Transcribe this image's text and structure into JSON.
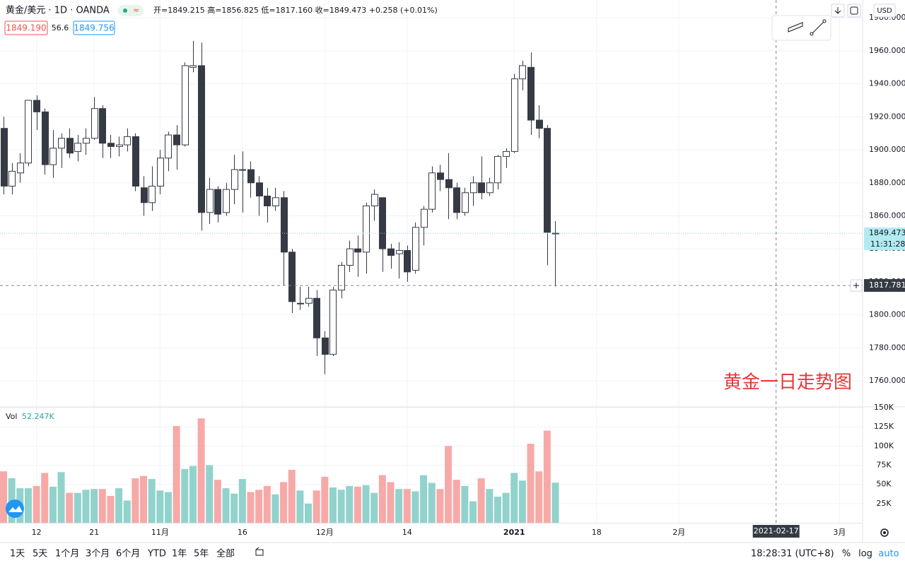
{
  "header": {
    "symbol": "黄金/美元 · 1D · OANDA",
    "ohlc": "开=1849.215 高=1856.825 低=1817.160 收=1849.473 +0.258 (+0.01%)",
    "bid": "1849.190",
    "spread": "56.6",
    "ask": "1849.756",
    "currency": "USD"
  },
  "chart_data": {
    "type": "candlestick",
    "annotation": "黄金一日走势图",
    "up_color": "#ffffff",
    "down_color": "#363a45",
    "wick_color": "#363a45",
    "vol_up_color": "#92d2cc",
    "vol_down_color": "#f7a9a7",
    "grid": true,
    "open": [
      1913,
      1878,
      1886,
      1892,
      1930,
      1923,
      1891,
      1901,
      1907,
      1899,
      1904,
      1907,
      1925,
      1904,
      1902,
      1903,
      1908,
      1877,
      1868,
      1878,
      1895,
      1909,
      1903,
      1950,
      1951,
      1862,
      1876,
      1862,
      1876,
      1888,
      1888,
      1880,
      1872,
      1866,
      1871,
      1838,
      1807,
      1807,
      1810,
      1786,
      1776,
      1815,
      1830,
      1840,
      1838,
      1866,
      1871,
      1840,
      1837,
      1839,
      1827,
      1853,
      1864,
      1886,
      1882,
      1877,
      1862,
      1874,
      1880,
      1874,
      1880,
      1896,
      1899,
      1943,
      1950,
      1918,
      1913,
      1849.215
    ],
    "high": [
      1920,
      1892,
      1898,
      1930,
      1933,
      1925,
      1912,
      1910,
      1913,
      1909,
      1913,
      1932,
      1927,
      1909,
      1908,
      1913,
      1910,
      1884,
      1890,
      1900,
      1911,
      1915,
      1953,
      1966,
      1965,
      1883,
      1878,
      1880,
      1897,
      1899,
      1893,
      1884,
      1877,
      1877,
      1875,
      1840,
      1817,
      1817,
      1815,
      1790,
      1817,
      1832,
      1845,
      1848,
      1868,
      1876,
      1871,
      1843,
      1844,
      1842,
      1856,
      1866,
      1890,
      1891,
      1898,
      1880,
      1877,
      1884,
      1896,
      1883,
      1897,
      1901,
      1946,
      1954,
      1959,
      1927,
      1915,
      1856.825
    ],
    "low": [
      1873,
      1873,
      1880,
      1890,
      1912,
      1885,
      1883,
      1889,
      1895,
      1893,
      1897,
      1906,
      1895,
      1895,
      1896,
      1899,
      1875,
      1860,
      1863,
      1873,
      1887,
      1888,
      1902,
      1947,
      1851,
      1855,
      1856,
      1860,
      1867,
      1862,
      1871,
      1860,
      1856,
      1863,
      1818,
      1801,
      1803,
      1805,
      1775,
      1764,
      1775,
      1810,
      1826,
      1823,
      1825,
      1857,
      1826,
      1828,
      1822,
      1820,
      1825,
      1842,
      1862,
      1875,
      1858,
      1858,
      1860,
      1866,
      1870,
      1872,
      1876,
      1889,
      1898,
      1936,
      1909,
      1907,
      1830,
      1817.16
    ],
    "close": [
      1878,
      1887,
      1892,
      1930,
      1923,
      1891,
      1901,
      1907,
      1898,
      1904,
      1907,
      1925,
      1904,
      1902,
      1903,
      1908,
      1878,
      1868,
      1878,
      1895,
      1909,
      1903,
      1951,
      1951,
      1862,
      1876,
      1861,
      1876,
      1888,
      1888,
      1880,
      1872,
      1866,
      1871,
      1838,
      1808,
      1807,
      1810,
      1786,
      1776,
      1815,
      1830,
      1840,
      1838,
      1866,
      1873,
      1840,
      1836,
      1839,
      1826,
      1853,
      1864,
      1886,
      1882,
      1877,
      1862,
      1874,
      1880,
      1874,
      1880,
      1896,
      1899,
      1943,
      1951,
      1918,
      1913,
      1850,
      1849.473
    ],
    "volume": [
      67,
      58,
      45,
      45,
      48,
      65,
      47,
      66,
      39,
      39,
      43,
      44,
      44,
      35,
      45,
      29,
      58,
      61,
      57,
      42,
      40,
      126,
      70,
      74,
      136,
      75,
      56,
      45,
      38,
      57,
      40,
      43,
      48,
      37,
      53,
      69,
      42,
      25,
      42,
      60,
      46,
      43,
      48,
      47,
      49,
      39,
      62,
      53,
      44,
      44,
      41,
      62,
      52,
      44,
      100,
      56,
      48,
      28,
      58,
      44,
      34,
      39,
      65,
      55,
      103,
      67,
      120,
      52.247
    ],
    "volume_label": "Vol",
    "last_volume_label": "52.247K",
    "xlim": [
      -0.43,
      104.3
    ],
    "xticks": [
      {
        "value": 4,
        "label": "12"
      },
      {
        "value": 11,
        "label": "21"
      },
      {
        "value": 19,
        "label": "11月"
      },
      {
        "value": 29,
        "label": "16"
      },
      {
        "value": 39,
        "label": "12月"
      },
      {
        "value": 49,
        "label": "14"
      },
      {
        "value": 62,
        "label": "2021"
      },
      {
        "value": 72,
        "label": "18"
      },
      {
        "value": 82,
        "label": "2月"
      },
      {
        "value": 101.5,
        "label": "3月"
      }
    ],
    "ylim": [
      1744.6,
      1990.8
    ],
    "yticks": [
      {
        "value": 1760,
        "label": "1760.000"
      },
      {
        "value": 1780,
        "label": "1780.000"
      },
      {
        "value": 1800,
        "label": "1800.000"
      },
      {
        "value": 1820,
        "label": "1820.000"
      },
      {
        "value": 1840,
        "label": "1840.000"
      },
      {
        "value": 1860,
        "label": "1860.000"
      },
      {
        "value": 1880,
        "label": "1880.000"
      },
      {
        "value": 1900,
        "label": "1900.000"
      },
      {
        "value": 1920,
        "label": "1920.000"
      },
      {
        "value": 1940,
        "label": "1940.000"
      },
      {
        "value": 1960,
        "label": "1960.000"
      },
      {
        "value": 1980,
        "label": "1980.000"
      }
    ],
    "vol_ylim": [
      0,
      150
    ],
    "vol_yticks": [
      {
        "value": 25,
        "label": "25K"
      },
      {
        "value": 50,
        "label": "50K"
      },
      {
        "value": 75,
        "label": "75K"
      },
      {
        "value": 100,
        "label": "100K"
      },
      {
        "value": 125,
        "label": "125K"
      },
      {
        "value": 150,
        "label": "150K"
      }
    ],
    "countdown": "11:31:28",
    "crosshair": {
      "x": 93.8,
      "x_label": "2021-02-17",
      "price": 1817.781
    }
  },
  "toolbar": {
    "ranges": [
      "1天",
      "5天",
      "1个月",
      "3个月",
      "6个月",
      "YTD",
      "1年",
      "5年",
      "全部"
    ],
    "clock": "18:28:31 (UTC+8)",
    "percent": "%",
    "log": "log",
    "auto": "auto"
  }
}
